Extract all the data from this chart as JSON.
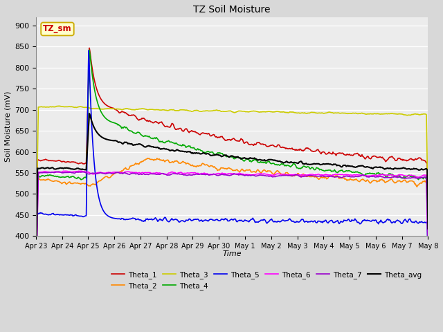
{
  "title": "TZ Soil Moisture",
  "xlabel": "Time",
  "ylabel": "Soil Moisture (mV)",
  "ylim": [
    400,
    920
  ],
  "yticks": [
    400,
    450,
    500,
    550,
    600,
    650,
    700,
    750,
    800,
    850,
    900
  ],
  "background_color": "#d8d8d8",
  "plot_bg_color": "#ececec",
  "grid_color": "#ffffff",
  "annotation_label": "TZ_sm",
  "annotation_bg": "#ffffcc",
  "annotation_fg": "#cc0000",
  "annotation_border": "#ccaa00",
  "series_colors": {
    "Theta_1": "#cc0000",
    "Theta_2": "#ff8800",
    "Theta_3": "#cccc00",
    "Theta_4": "#00aa00",
    "Theta_5": "#0000ee",
    "Theta_6": "#ff00ff",
    "Theta_7": "#9900cc",
    "Theta_avg": "#000000"
  },
  "xtick_labels": [
    "Apr 23",
    "Apr 24",
    "Apr 25",
    "Apr 26",
    "Apr 27",
    "Apr 28",
    "Apr 29",
    "Apr 30",
    "May 1",
    "May 2",
    "May 3",
    "May 4",
    "May 5",
    "May 6",
    "May 7",
    "May 8"
  ],
  "n_points": 500
}
